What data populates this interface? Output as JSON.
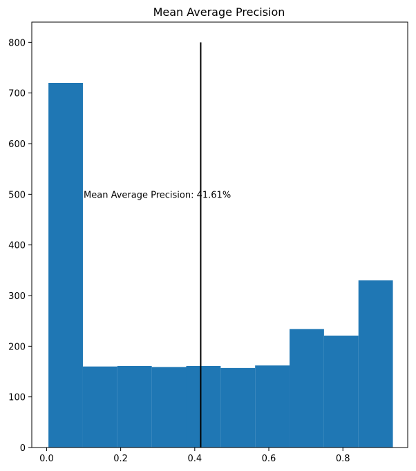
{
  "chart_data": {
    "type": "bar",
    "title": "Mean Average Precision",
    "xlabel": "",
    "ylabel": "",
    "xlim": [
      -0.04,
      0.975
    ],
    "ylim": [
      0,
      840
    ],
    "x_ticks": [
      "0.0",
      "0.2",
      "0.4",
      "0.6",
      "0.8"
    ],
    "x_tick_values": [
      0.0,
      0.2,
      0.4,
      0.6,
      0.8
    ],
    "y_ticks": [
      "0",
      "100",
      "200",
      "300",
      "400",
      "500",
      "600",
      "700",
      "800"
    ],
    "y_tick_values": [
      0,
      100,
      200,
      300,
      400,
      500,
      600,
      700,
      800
    ],
    "bins": [
      {
        "x0": 0.005,
        "x1": 0.098,
        "count": 720
      },
      {
        "x0": 0.098,
        "x1": 0.191,
        "count": 160
      },
      {
        "x0": 0.191,
        "x1": 0.284,
        "count": 161
      },
      {
        "x0": 0.284,
        "x1": 0.377,
        "count": 159
      },
      {
        "x0": 0.377,
        "x1": 0.47,
        "count": 161
      },
      {
        "x0": 0.47,
        "x1": 0.563,
        "count": 157
      },
      {
        "x0": 0.563,
        "x1": 0.656,
        "count": 162
      },
      {
        "x0": 0.656,
        "x1": 0.749,
        "count": 234
      },
      {
        "x0": 0.749,
        "x1": 0.842,
        "count": 221
      },
      {
        "x0": 0.842,
        "x1": 0.935,
        "count": 330
      }
    ],
    "bar_color": "#1f77b4",
    "vertical_line": {
      "x": 0.4161,
      "y0": 0,
      "y1": 800,
      "color": "#000000"
    },
    "annotation": {
      "text": "Mean Average Precision: 41.61%",
      "x": 0.1,
      "y": 500
    },
    "grid": false,
    "legend": "none"
  }
}
